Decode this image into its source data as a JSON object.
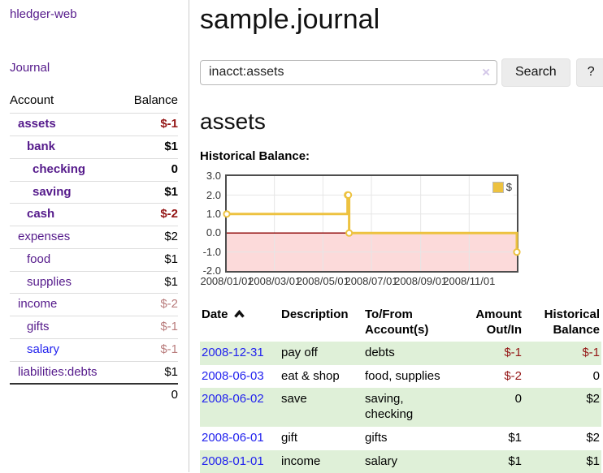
{
  "colors": {
    "purple": "#551a8b",
    "blue": "#2222ee",
    "neg_strong": "#941616",
    "neg_muted": "#b97c7c",
    "row_green": "#dff0d8",
    "gold": "#edc240",
    "button_bg": "#ececec",
    "sidebar_divider": "#cccccc",
    "row_divider": "#dddddd"
  },
  "sidebar": {
    "brand": "hledger-web",
    "nav_journal": "Journal",
    "accounts": {
      "headers": [
        "Account",
        "Balance"
      ],
      "rows": [
        {
          "name": "assets",
          "balance": "$-1"
        },
        {
          "name": "bank",
          "balance": "$1"
        },
        {
          "name": "checking",
          "balance": "0"
        },
        {
          "name": "saving",
          "balance": "$1"
        },
        {
          "name": "cash",
          "balance": "$-2"
        },
        {
          "name": "expenses",
          "balance": "$2"
        },
        {
          "name": "food",
          "balance": "$1"
        },
        {
          "name": "supplies",
          "balance": "$1"
        },
        {
          "name": "income",
          "balance": "$-2"
        },
        {
          "name": "gifts",
          "balance": "$-1"
        },
        {
          "name": "salary",
          "balance": "$-1"
        },
        {
          "name": "liabilities:debts",
          "balance": "$1"
        }
      ],
      "total": "0"
    }
  },
  "main": {
    "title": "sample.journal",
    "search": {
      "value": "inacct:assets",
      "clear": "×",
      "button": "Search",
      "help": "?"
    },
    "heading": "assets",
    "chart_label": "Historical Balance:"
  },
  "register": {
    "headers": {
      "date": "Date",
      "description": "Description",
      "accounts": "To/From Account(s)",
      "amount": "Amount Out/In",
      "balance": "Historical Balance"
    },
    "rows": [
      {
        "date": "2008-12-31",
        "description": "pay off",
        "accounts": "debts",
        "amount": "$-1",
        "balance": "$-1"
      },
      {
        "date": "2008-06-03",
        "description": "eat & shop",
        "accounts": "food, supplies",
        "amount": "$-2",
        "balance": "0"
      },
      {
        "date": "2008-06-02",
        "description": "save",
        "accounts": "saving, checking",
        "amount": "0",
        "balance": "$2"
      },
      {
        "date": "2008-06-01",
        "description": "gift",
        "accounts": "gifts",
        "amount": "$1",
        "balance": "$2"
      },
      {
        "date": "2008-01-01",
        "description": "income",
        "accounts": "salary",
        "amount": "$1",
        "balance": "$1"
      }
    ]
  },
  "chart_data": {
    "type": "line",
    "step": true,
    "title": "Historical Balance",
    "x": [
      "2008-01-01",
      "2008-06-01",
      "2008-06-02",
      "2008-06-03",
      "2008-12-31"
    ],
    "series": [
      {
        "name": "$",
        "color": "#edc240",
        "values": [
          1,
          2,
          2,
          0,
          -1
        ]
      }
    ],
    "ylim": [
      -2,
      3
    ],
    "x_range": [
      "2008-01-01",
      "2008-12-31"
    ],
    "y_ticks": [
      "3.0",
      "2.0",
      "1.0",
      "0.0",
      "-1.0",
      "-2.0"
    ],
    "x_ticks": [
      "2008/01/01",
      "2008/03/01",
      "2008/05/01",
      "2008/07/01",
      "2008/09/01",
      "2008/11/01"
    ],
    "legend": {
      "label": "$",
      "position": "top-right"
    },
    "grid": true,
    "colors": {
      "grid": "#e6e6e6",
      "zero_line": "#8b0000",
      "negative_fill": "#fcdada"
    }
  }
}
